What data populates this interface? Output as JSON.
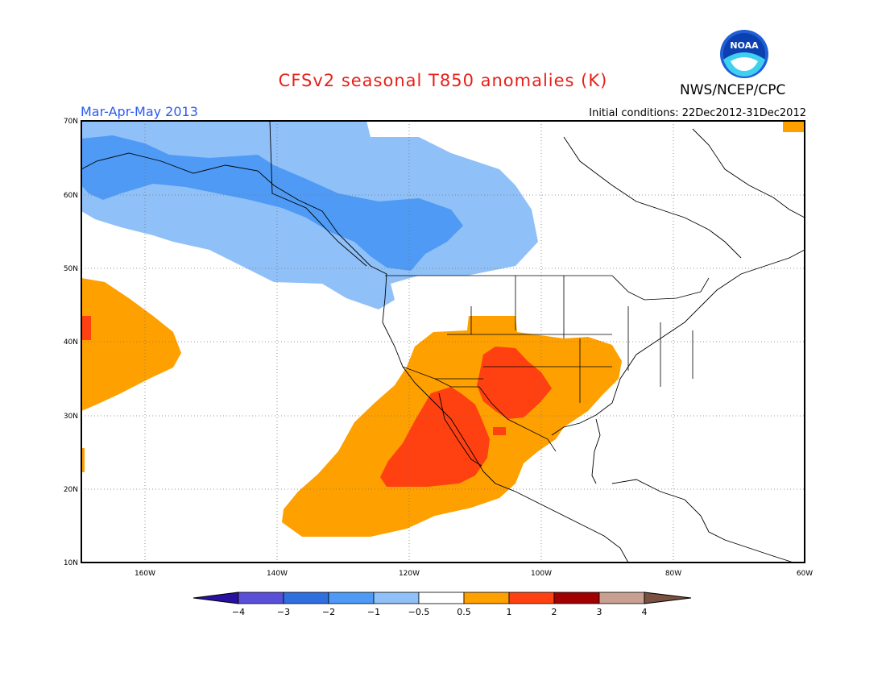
{
  "title": "CFSv2 seasonal T850 anomalies (K)",
  "season": "Mar-Apr-May 2013",
  "agency": "NWS/NCEP/CPC",
  "initial_conditions": "Initial conditions: 22Dec2012-31Dec2012",
  "logo_text": "NOAA",
  "lat_labels": [
    "70N",
    "60N",
    "50N",
    "40N",
    "30N",
    "20N",
    "10N"
  ],
  "lon_labels": [
    "160W",
    "140W",
    "120W",
    "100W",
    "80W",
    "60W"
  ],
  "colorbar": {
    "labels": [
      "−4",
      "−3",
      "−2",
      "−1",
      "−0.5",
      "0.5",
      "1",
      "2",
      "3",
      "4"
    ],
    "colors": [
      "#2a10a0",
      "#5a4fd8",
      "#2f6fe0",
      "#4e9af5",
      "#8fc0f8",
      "#ffffff",
      "#fea000",
      "#ff4010",
      "#a00000",
      "#c7a091",
      "#7a5040"
    ]
  }
}
